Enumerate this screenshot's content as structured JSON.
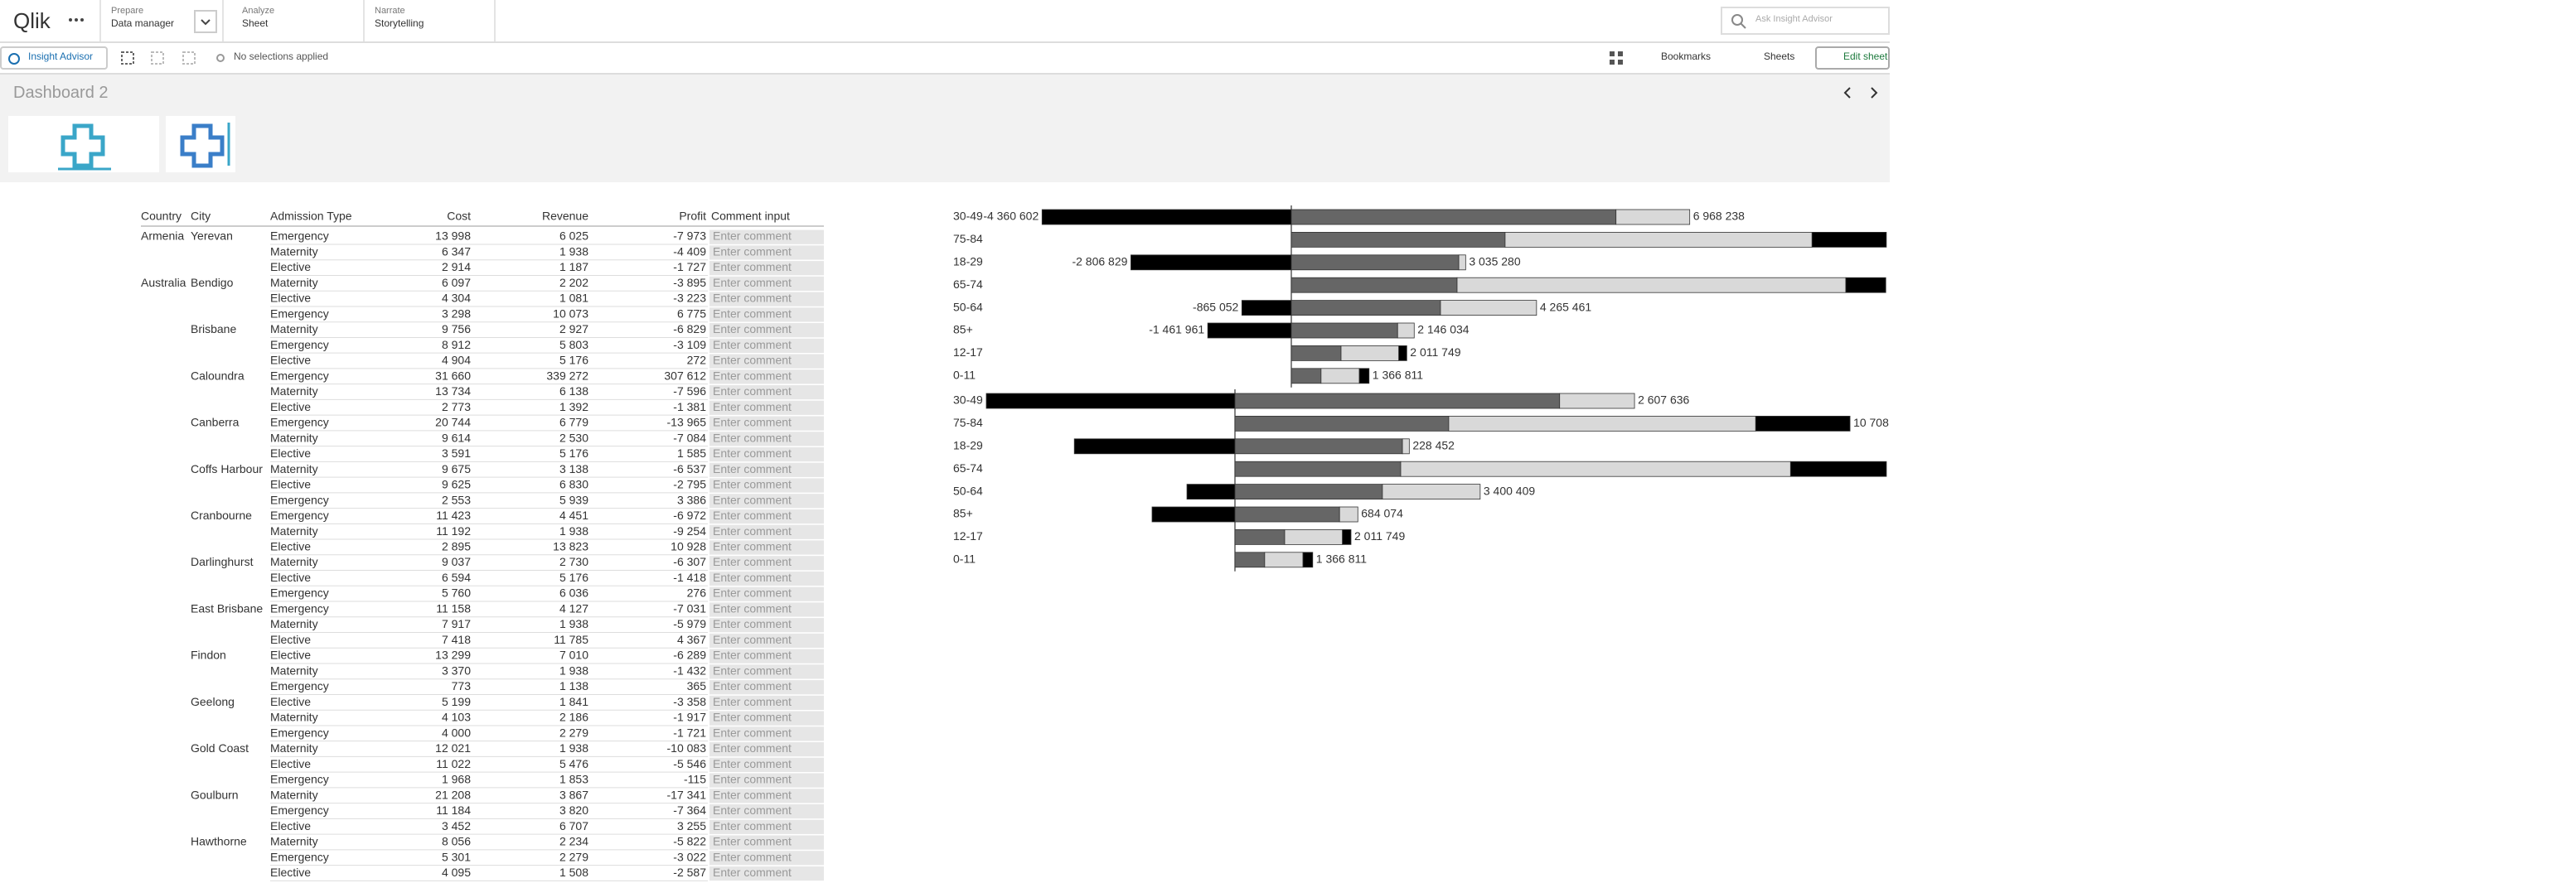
{
  "nav": {
    "logo": "Qlik",
    "tabs": [
      {
        "label": "Prepare",
        "sub": "Data manager"
      },
      {
        "label": "Analyze",
        "sub": "Sheet"
      },
      {
        "label": "Narrate",
        "sub": "Storytelling"
      }
    ],
    "search_placeholder": "Ask Insight Advisor"
  },
  "toolbar": {
    "insight": "Insight Advisor",
    "selections": "No selections applied",
    "bookmarks": "Bookmarks",
    "sheets": "Sheets",
    "edit": "Edit sheet"
  },
  "sheet_title": "Dashboard 2",
  "table": {
    "columns": [
      "Country",
      "City",
      "Admission Type",
      "Cost",
      "Revenue",
      "Profit",
      "Comment input"
    ],
    "comment_placeholder": "Enter comment",
    "rows": [
      [
        "Armenia",
        "Yerevan",
        "Emergency",
        "13 998",
        "6 025",
        "-7 973"
      ],
      [
        null,
        null,
        "Maternity",
        "6 347",
        "1 938",
        "-4 409"
      ],
      [
        null,
        null,
        "Elective",
        "2 914",
        "1 187",
        "-1 727"
      ],
      [
        "Australia",
        "Bendigo",
        "Maternity",
        "6 097",
        "2 202",
        "-3 895"
      ],
      [
        null,
        null,
        "Elective",
        "4 304",
        "1 081",
        "-3 223"
      ],
      [
        null,
        null,
        "Emergency",
        "3 298",
        "10 073",
        "6 775"
      ],
      [
        null,
        "Brisbane",
        "Maternity",
        "9 756",
        "2 927",
        "-6 829"
      ],
      [
        null,
        null,
        "Emergency",
        "8 912",
        "5 803",
        "-3 109"
      ],
      [
        null,
        null,
        "Elective",
        "4 904",
        "5 176",
        "272"
      ],
      [
        null,
        "Caloundra",
        "Emergency",
        "31 660",
        "339 272",
        "307 612"
      ],
      [
        null,
        null,
        "Maternity",
        "13 734",
        "6 138",
        "-7 596"
      ],
      [
        null,
        null,
        "Elective",
        "2 773",
        "1 392",
        "-1 381"
      ],
      [
        null,
        "Canberra",
        "Emergency",
        "20 744",
        "6 779",
        "-13 965"
      ],
      [
        null,
        null,
        "Maternity",
        "9 614",
        "2 530",
        "-7 084"
      ],
      [
        null,
        null,
        "Elective",
        "3 591",
        "5 176",
        "1 585"
      ],
      [
        null,
        "Coffs Harbour",
        "Maternity",
        "9 675",
        "3 138",
        "-6 537"
      ],
      [
        null,
        null,
        "Elective",
        "9 625",
        "6 830",
        "-2 795"
      ],
      [
        null,
        null,
        "Emergency",
        "2 553",
        "5 939",
        "3 386"
      ],
      [
        null,
        "Cranbourne",
        "Emergency",
        "11 423",
        "4 451",
        "-6 972"
      ],
      [
        null,
        null,
        "Maternity",
        "11 192",
        "1 938",
        "-9 254"
      ],
      [
        null,
        null,
        "Elective",
        "2 895",
        "13 823",
        "10 928"
      ],
      [
        null,
        "Darlinghurst",
        "Maternity",
        "9 037",
        "2 730",
        "-6 307"
      ],
      [
        null,
        null,
        "Elective",
        "6 594",
        "5 176",
        "-1 418"
      ],
      [
        null,
        null,
        "Emergency",
        "5 760",
        "6 036",
        "276"
      ],
      [
        null,
        "East Brisbane",
        "Emergency",
        "11 158",
        "4 127",
        "-7 031"
      ],
      [
        null,
        null,
        "Maternity",
        "7 917",
        "1 938",
        "-5 979"
      ],
      [
        null,
        null,
        "Elective",
        "7 418",
        "11 785",
        "4 367"
      ],
      [
        null,
        "Findon",
        "Elective",
        "13 299",
        "7 010",
        "-6 289"
      ],
      [
        null,
        null,
        "Maternity",
        "3 370",
        "1 938",
        "-1 432"
      ],
      [
        null,
        null,
        "Emergency",
        "773",
        "1 138",
        "365"
      ],
      [
        null,
        "Geelong",
        "Elective",
        "5 199",
        "1 841",
        "-3 358"
      ],
      [
        null,
        null,
        "Maternity",
        "4 103",
        "2 186",
        "-1 917"
      ],
      [
        null,
        null,
        "Emergency",
        "4 000",
        "2 279",
        "-1 721"
      ],
      [
        null,
        "Gold Coast",
        "Maternity",
        "12 021",
        "1 938",
        "-10 083"
      ],
      [
        null,
        null,
        "Elective",
        "11 022",
        "5 476",
        "-5 546"
      ],
      [
        null,
        null,
        "Emergency",
        "1 968",
        "1 853",
        "-115"
      ],
      [
        null,
        "Goulburn",
        "Maternity",
        "21 208",
        "3 867",
        "-17 341"
      ],
      [
        null,
        null,
        "Emergency",
        "11 184",
        "3 820",
        "-7 364"
      ],
      [
        null,
        null,
        "Elective",
        "3 452",
        "6 707",
        "3 255"
      ],
      [
        null,
        "Hawthorne",
        "Maternity",
        "8 056",
        "2 234",
        "-5 822"
      ],
      [
        null,
        null,
        "Emergency",
        "5 301",
        "2 279",
        "-3 022"
      ],
      [
        null,
        null,
        "Elective",
        "4 095",
        "1 508",
        "-2 587"
      ]
    ]
  },
  "chart_data": [
    {
      "type": "bar",
      "categories": [
        "30-49",
        "75-84",
        "18-29",
        "65-74",
        "50-64",
        "85+",
        "12-17",
        "0-11"
      ],
      "xlim": [
        -5336000,
        10411000
      ],
      "series": [
        {
          "color": "#000000",
          "values": [
            -4360602,
            null,
            -2806829,
            null,
            -865052,
            -1461961,
            null,
            null
          ]
        },
        {
          "color": "#666666",
          "values": [
            5680000,
            3740000,
            2930000,
            2900000,
            2610000,
            1860000,
            870000,
            520000
          ]
        },
        {
          "color": "#d9d9d9",
          "values": [
            1290000,
            5370000,
            120000,
            6800000,
            1680000,
            290000,
            1010000,
            670000
          ]
        },
        {
          "color": "#000000",
          "values": [
            null,
            1300000,
            null,
            700000,
            null,
            null,
            140000,
            170000
          ]
        }
      ],
      "negative_labels": [
        "-4 360 602",
        null,
        "-2 806 829",
        null,
        "-865 052",
        "-1 461 961",
        null,
        null
      ],
      "total_labels": [
        "6 968 238",
        null,
        "3 035 280",
        null,
        "4 265 461",
        "2 146 034",
        "2 011 749",
        "1 366 811"
      ]
    },
    {
      "type": "bar",
      "categories": [
        "30-49",
        "75-84",
        "18-29",
        "65-74",
        "50-64",
        "85+",
        "12-17",
        "0-11"
      ],
      "xlim": [
        -4350000,
        11397000
      ],
      "series": [
        {
          "color": "#000000",
          "values": [
            -4350000,
            null,
            -2810000,
            null,
            -840000,
            -1450000,
            null,
            null
          ]
        },
        {
          "color": "#666666",
          "values": [
            5680000,
            3740000,
            2930000,
            2900000,
            2580000,
            1830000,
            870000,
            520000
          ]
        },
        {
          "color": "#d9d9d9",
          "values": [
            1310000,
            5370000,
            120000,
            6820000,
            1710000,
            320000,
            1010000,
            670000
          ]
        },
        {
          "color": "#000000",
          "values": [
            null,
            1650000,
            null,
            1680000,
            null,
            null,
            150000,
            170000
          ]
        }
      ],
      "total_labels": [
        "2 607 636",
        "10 708",
        "228 452",
        null,
        "3 400 409",
        "684 074",
        "2 011 749",
        "1 366 811"
      ]
    }
  ]
}
